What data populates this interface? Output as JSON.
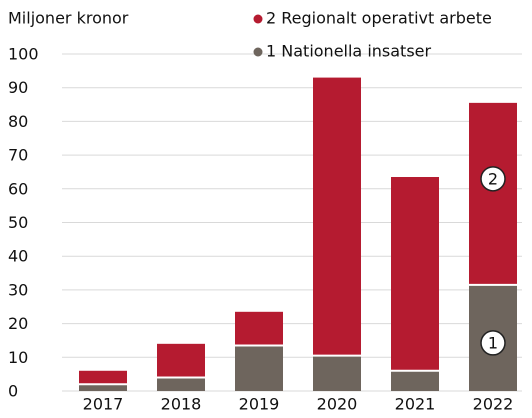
{
  "chart_data": {
    "type": "stacked_bar",
    "title": "Miljoner kronor",
    "categories": [
      "2017",
      "2018",
      "2019",
      "2020",
      "2021",
      "2022"
    ],
    "series": [
      {
        "name": "1 Nationella insatser",
        "color": "#6e655d",
        "values": [
          2,
          4,
          13.5,
          10.5,
          6,
          31.5
        ],
        "annotation": "1"
      },
      {
        "name": "2 Regionalt operativt arbete",
        "color": "#b51b30",
        "values": [
          4,
          10,
          10,
          82.5,
          57.5,
          54
        ],
        "annotation": "2"
      }
    ],
    "ylim": [
      0,
      100
    ],
    "yticks": [
      0,
      10,
      20,
      30,
      40,
      50,
      60,
      70,
      80,
      90,
      100
    ],
    "grid": true
  }
}
